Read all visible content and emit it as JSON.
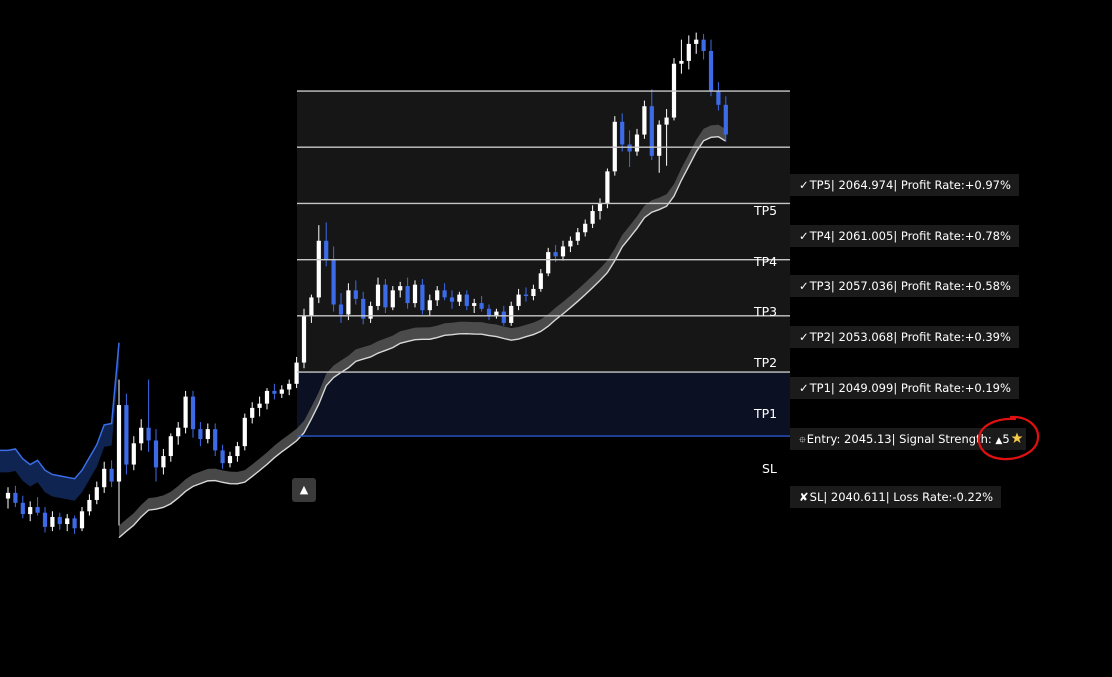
{
  "colors": {
    "background": "#000000",
    "bull_candle": "#ffffff",
    "bear_candle": "#3d6be8",
    "tp_zone": "#161616",
    "sl_zone": "#0b1022",
    "level_line": "#c8c8c8",
    "sl_line": "#2b57c9",
    "trail_band": "#555555",
    "annotation_circle": "#e01010"
  },
  "levels": [
    {
      "name": "TP5",
      "zone_label": "TP5",
      "icon": "check-icon",
      "glyph": "✓",
      "text": "TP5| 2064.974| Profit Rate:+0.97%"
    },
    {
      "name": "TP4",
      "zone_label": "TP4",
      "icon": "check-icon",
      "glyph": "✓",
      "text": "TP4| 2061.005| Profit Rate:+0.78%"
    },
    {
      "name": "TP3",
      "zone_label": "TP3",
      "icon": "check-icon",
      "glyph": "✓",
      "text": "TP3| 2057.036| Profit Rate:+0.58%"
    },
    {
      "name": "TP2",
      "zone_label": "TP2",
      "icon": "check-icon",
      "glyph": "✓",
      "text": "TP2| 2053.068| Profit Rate:+0.39%"
    },
    {
      "name": "TP1",
      "zone_label": "TP1",
      "icon": "check-icon",
      "glyph": "✓",
      "text": "TP1| 2049.099| Profit Rate:+0.19%"
    }
  ],
  "entry": {
    "icon": "crosshair-icon",
    "glyph": "⯐",
    "text": "Entry: 2045.13| Signal Strength: ",
    "strength_glyph": "▲",
    "strength": "5",
    "star_icon": "star-icon"
  },
  "sl": {
    "icon": "cross-icon",
    "glyph": "✘",
    "zone_label": "SL",
    "text": "SL| 2040.611| Loss Rate:-0.22%"
  },
  "signal_marker": {
    "icon": "up-arrow-icon",
    "glyph": "▲"
  },
  "chart_data": {
    "type": "candlestick",
    "price_levels": {
      "TP5": 2064.974,
      "TP4": 2061.005,
      "TP3": 2057.036,
      "TP2": 2053.068,
      "TP1": 2049.099,
      "Entry": 2045.13,
      "SL": 2040.611
    },
    "profit_rates": {
      "TP5": 0.97,
      "TP4": 0.78,
      "TP3": 0.58,
      "TP2": 0.39,
      "TP1": 0.19
    },
    "loss_rate": -0.22,
    "signal_strength": 5,
    "y_range": [
      2023.6,
      2071.4
    ],
    "candles": [
      [
        2036.2,
        2037.0,
        2035.5,
        2036.6
      ],
      [
        2036.6,
        2037.1,
        2035.6,
        2035.9
      ],
      [
        2035.9,
        2036.4,
        2034.8,
        2035.1
      ],
      [
        2035.1,
        2036.0,
        2034.6,
        2035.6
      ],
      [
        2035.6,
        2036.3,
        2035.0,
        2035.2
      ],
      [
        2035.2,
        2035.6,
        2033.8,
        2034.2
      ],
      [
        2034.2,
        2035.3,
        2033.9,
        2034.9
      ],
      [
        2034.9,
        2035.2,
        2034.0,
        2034.4
      ],
      [
        2034.4,
        2035.1,
        2033.9,
        2034.8
      ],
      [
        2034.8,
        2035.0,
        2033.7,
        2034.1
      ],
      [
        2034.1,
        2035.6,
        2033.9,
        2035.3
      ],
      [
        2035.3,
        2036.5,
        2035.0,
        2036.1
      ],
      [
        2036.1,
        2037.4,
        2035.8,
        2037.0
      ],
      [
        2037.0,
        2038.8,
        2036.6,
        2038.3
      ],
      [
        2038.3,
        2038.9,
        2037.0,
        2037.4
      ],
      [
        2037.4,
        2044.6,
        2034.3,
        2042.8
      ],
      [
        2042.8,
        2043.6,
        2037.9,
        2038.6
      ],
      [
        2038.6,
        2040.6,
        2038.2,
        2040.1
      ],
      [
        2040.1,
        2041.8,
        2039.6,
        2041.2
      ],
      [
        2041.2,
        2044.6,
        2039.5,
        2040.3
      ],
      [
        2040.3,
        2041.1,
        2037.4,
        2038.4
      ],
      [
        2038.4,
        2039.7,
        2037.9,
        2039.2
      ],
      [
        2039.2,
        2040.8,
        2038.8,
        2040.6
      ],
      [
        2040.6,
        2041.6,
        2040.0,
        2041.2
      ],
      [
        2041.2,
        2043.8,
        2040.8,
        2043.4
      ],
      [
        2043.4,
        2043.8,
        2040.5,
        2041.1
      ],
      [
        2041.1,
        2041.6,
        2039.9,
        2040.4
      ],
      [
        2040.4,
        2041.5,
        2040.1,
        2041.1
      ],
      [
        2041.1,
        2041.5,
        2039.2,
        2039.6
      ],
      [
        2039.6,
        2040.0,
        2038.3,
        2038.7
      ],
      [
        2038.7,
        2039.5,
        2038.4,
        2039.2
      ],
      [
        2039.2,
        2040.2,
        2038.8,
        2039.9
      ],
      [
        2039.9,
        2042.2,
        2039.6,
        2041.9
      ],
      [
        2041.9,
        2043.0,
        2041.5,
        2042.6
      ],
      [
        2042.6,
        2043.4,
        2042.0,
        2042.9
      ],
      [
        2042.9,
        2044.0,
        2042.5,
        2043.8
      ],
      [
        2043.8,
        2044.3,
        2043.2,
        2043.6
      ],
      [
        2043.6,
        2044.2,
        2043.3,
        2043.9
      ],
      [
        2043.9,
        2044.6,
        2043.5,
        2044.3
      ],
      [
        2044.3,
        2046.2,
        2044.0,
        2045.8
      ],
      [
        2045.8,
        2049.6,
        2045.4,
        2049.1
      ],
      [
        2049.1,
        2050.6,
        2048.6,
        2050.4
      ],
      [
        2050.4,
        2055.5,
        2050.0,
        2054.4
      ],
      [
        2054.4,
        2055.7,
        2052.6,
        2053.1
      ],
      [
        2053.1,
        2054.0,
        2049.4,
        2049.9
      ],
      [
        2049.9,
        2050.7,
        2048.6,
        2049.2
      ],
      [
        2049.2,
        2051.4,
        2048.8,
        2050.9
      ],
      [
        2050.9,
        2051.6,
        2049.9,
        2050.3
      ],
      [
        2050.3,
        2050.8,
        2048.5,
        2048.9
      ],
      [
        2048.9,
        2050.1,
        2048.6,
        2049.8
      ],
      [
        2049.8,
        2051.8,
        2049.5,
        2051.3
      ],
      [
        2051.3,
        2051.7,
        2049.3,
        2049.7
      ],
      [
        2049.7,
        2051.2,
        2049.5,
        2050.9
      ],
      [
        2050.9,
        2051.5,
        2050.4,
        2051.2
      ],
      [
        2051.2,
        2051.8,
        2049.6,
        2050.0
      ],
      [
        2050.0,
        2051.6,
        2049.7,
        2051.3
      ],
      [
        2051.3,
        2051.7,
        2049.2,
        2049.5
      ],
      [
        2049.5,
        2050.6,
        2049.1,
        2050.2
      ],
      [
        2050.2,
        2051.2,
        2049.8,
        2050.9
      ],
      [
        2050.9,
        2051.4,
        2050.2,
        2050.4
      ],
      [
        2050.4,
        2050.9,
        2049.6,
        2050.1
      ],
      [
        2050.1,
        2050.8,
        2049.8,
        2050.6
      ],
      [
        2050.6,
        2050.9,
        2049.5,
        2049.8
      ],
      [
        2049.8,
        2050.3,
        2049.3,
        2050.0
      ],
      [
        2050.0,
        2050.5,
        2049.4,
        2049.6
      ],
      [
        2049.6,
        2049.9,
        2048.8,
        2049.1
      ],
      [
        2049.1,
        2049.6,
        2048.9,
        2049.4
      ],
      [
        2049.4,
        2049.8,
        2048.4,
        2048.6
      ],
      [
        2048.6,
        2050.1,
        2048.4,
        2049.8
      ],
      [
        2049.8,
        2051.0,
        2049.5,
        2050.6
      ],
      [
        2050.6,
        2051.1,
        2050.1,
        2050.5
      ],
      [
        2050.5,
        2051.3,
        2050.2,
        2051.0
      ],
      [
        2051.0,
        2052.4,
        2050.8,
        2052.1
      ],
      [
        2052.1,
        2053.9,
        2051.9,
        2053.6
      ],
      [
        2053.6,
        2054.1,
        2052.9,
        2053.3
      ],
      [
        2053.3,
        2054.4,
        2053.0,
        2054.0
      ],
      [
        2054.0,
        2054.7,
        2053.6,
        2054.4
      ],
      [
        2054.4,
        2055.3,
        2054.1,
        2055.0
      ],
      [
        2055.0,
        2055.9,
        2054.7,
        2055.6
      ],
      [
        2055.6,
        2056.9,
        2055.3,
        2056.5
      ],
      [
        2056.5,
        2057.4,
        2055.9,
        2057.0
      ],
      [
        2057.0,
        2059.5,
        2056.7,
        2059.3
      ],
      [
        2059.3,
        2063.2,
        2059.0,
        2062.8
      ],
      [
        2062.8,
        2063.4,
        2060.7,
        2061.2
      ],
      [
        2061.2,
        2062.2,
        2059.6,
        2060.7
      ],
      [
        2060.7,
        2062.3,
        2060.4,
        2061.9
      ],
      [
        2061.9,
        2064.3,
        2061.6,
        2063.9
      ],
      [
        2063.9,
        2065.1,
        2060.1,
        2060.4
      ],
      [
        2060.4,
        2062.9,
        2059.2,
        2062.6
      ],
      [
        2062.6,
        2063.7,
        2059.7,
        2063.1
      ],
      [
        2063.1,
        2067.3,
        2062.9,
        2066.9
      ],
      [
        2066.9,
        2068.6,
        2066.2,
        2067.1
      ],
      [
        2067.1,
        2068.9,
        2066.5,
        2068.3
      ],
      [
        2068.3,
        2069.1,
        2067.6,
        2068.6
      ],
      [
        2068.6,
        2069.0,
        2067.2,
        2067.8
      ],
      [
        2067.8,
        2068.6,
        2064.6,
        2065.0
      ],
      [
        2065.0,
        2065.6,
        2063.6,
        2064.0
      ],
      [
        2064.0,
        2064.6,
        2061.4,
        2061.9
      ]
    ]
  }
}
